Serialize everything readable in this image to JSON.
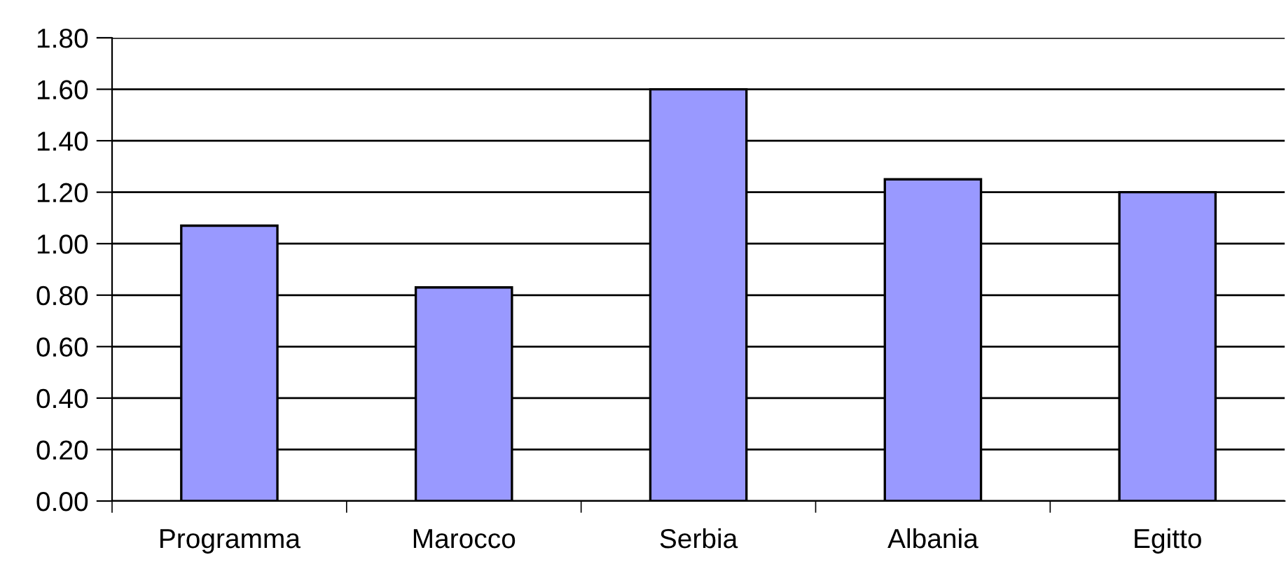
{
  "chart_data": {
    "type": "bar",
    "categories": [
      "Programma",
      "Marocco",
      "Serbia",
      "Albania",
      "Egitto"
    ],
    "values": [
      1.07,
      0.83,
      1.6,
      1.25,
      1.2
    ],
    "color": "#9999ff",
    "ylim": [
      0,
      1.8
    ],
    "yticks": [
      {
        "value": 0,
        "label": "0.00"
      },
      {
        "value": 0.2,
        "label": "0.20"
      },
      {
        "value": 0.4,
        "label": "0.40"
      },
      {
        "value": 0.6,
        "label": "0.60"
      },
      {
        "value": 0.8,
        "label": "0.80"
      },
      {
        "value": 1.0,
        "label": "1.00"
      },
      {
        "value": 1.2,
        "label": "1.20"
      },
      {
        "value": 1.4,
        "label": "1.40"
      },
      {
        "value": 1.6,
        "label": "1.60"
      },
      {
        "value": 1.8,
        "label": "1.80"
      }
    ],
    "grid": "y",
    "legend": false
  }
}
